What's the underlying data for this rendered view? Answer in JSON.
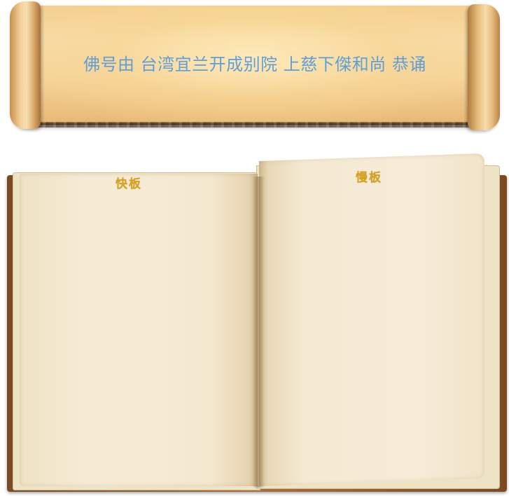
{
  "scroll": {
    "title": "佛号由 台湾宜兰开成别院 上慈下傑和尚 恭诵"
  },
  "book": {
    "left_page_label": "快板",
    "right_page_label": "慢板"
  },
  "colors": {
    "title_text": "#5f9fd8",
    "label_text": "#d4a21c",
    "scroll_paper": "#f4cf8f",
    "book_cover": "#a8703c",
    "page": "#f4e8cf"
  }
}
